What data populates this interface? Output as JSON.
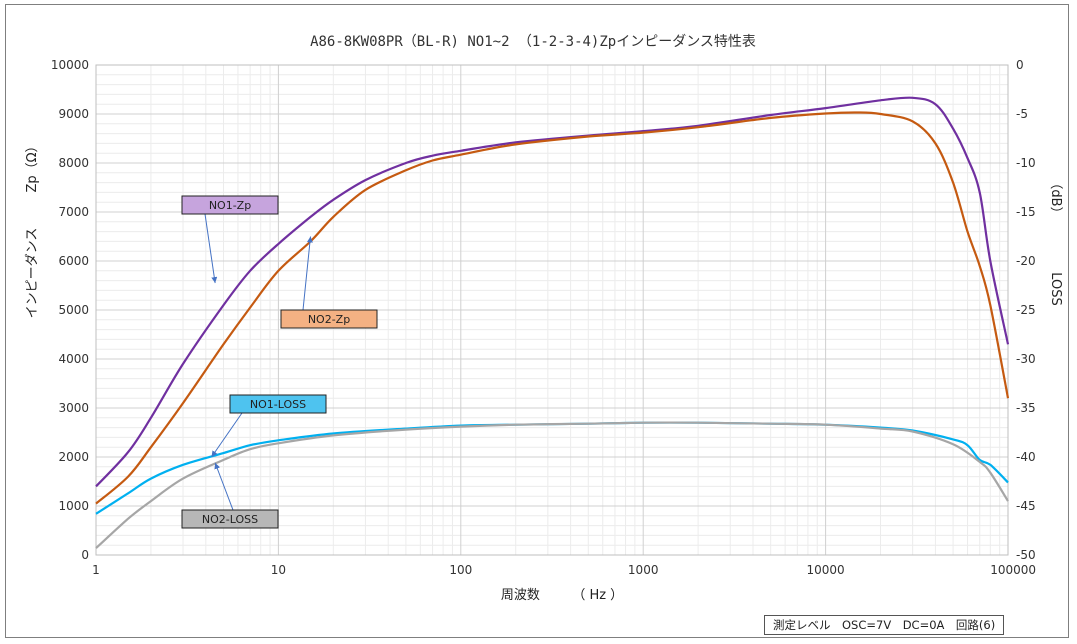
{
  "chart_data": {
    "type": "line",
    "title": "A86-8KW08PR（BL-R) NO1~2 （1-2-3-4)Zpインピーダンス特性表",
    "xlabel": "周波数　　　（ Hz ）",
    "ylabel_left_top": "Zp（Ω）",
    "ylabel_left_bottom": "インピーダンス",
    "ylabel_right_top": "（dB）",
    "ylabel_right_bottom": "LOSS",
    "x_scale": "log",
    "xlim": [
      1,
      100000
    ],
    "x_ticks": [
      "1",
      "10",
      "100",
      "1000",
      "10000",
      "100000"
    ],
    "ylim_left": [
      0,
      10000
    ],
    "y_ticks_left": [
      "0",
      "1000",
      "2000",
      "3000",
      "4000",
      "5000",
      "6000",
      "7000",
      "8000",
      "9000",
      "10000"
    ],
    "ylim_right": [
      -50,
      0
    ],
    "y_ticks_right": [
      "-50",
      "-45",
      "-40",
      "-35",
      "-30",
      "-25",
      "-20",
      "-15",
      "-10",
      "-5",
      "0"
    ],
    "grid": true,
    "note": "測定レベル　OSC=7V　DC=0A　回路(6)",
    "series": [
      {
        "name": "NO1-Zp",
        "axis": "left",
        "color": "#7030a0",
        "label_bg": "#c6a4dd",
        "x": [
          1,
          1.5,
          2,
          3,
          5,
          7,
          10,
          15,
          20,
          30,
          50,
          70,
          100,
          200,
          500,
          1000,
          2000,
          5000,
          10000,
          20000,
          30000,
          40000,
          50000,
          60000,
          70000,
          80000,
          100000
        ],
        "y": [
          1400,
          2100,
          2800,
          3900,
          5100,
          5800,
          6350,
          6900,
          7250,
          7650,
          8000,
          8150,
          8250,
          8420,
          8560,
          8650,
          8760,
          8980,
          9120,
          9280,
          9330,
          9200,
          8700,
          8100,
          7400,
          6000,
          4300
        ]
      },
      {
        "name": "NO2-Zp",
        "axis": "left",
        "color": "#c55a11",
        "label_bg": "#f4b183",
        "x": [
          1,
          1.5,
          2,
          3,
          5,
          7,
          10,
          15,
          20,
          30,
          50,
          70,
          100,
          200,
          500,
          1000,
          2000,
          5000,
          10000,
          15000,
          20000,
          30000,
          40000,
          50000,
          60000,
          70000,
          80000,
          100000
        ],
        "y": [
          1050,
          1600,
          2200,
          3100,
          4300,
          5050,
          5800,
          6400,
          6900,
          7450,
          7850,
          8050,
          8170,
          8380,
          8540,
          8620,
          8730,
          8920,
          9010,
          9030,
          9000,
          8850,
          8400,
          7600,
          6600,
          5900,
          5100,
          3200
        ]
      },
      {
        "name": "NO1-LOSS",
        "axis": "right",
        "color": "#00b0f0",
        "label_bg": "#4ec3ef",
        "x": [
          1,
          1.5,
          2,
          3,
          5,
          7,
          10,
          20,
          50,
          100,
          200,
          500,
          1000,
          2000,
          5000,
          10000,
          20000,
          30000,
          50000,
          60000,
          70000,
          80000,
          100000
        ],
        "y": [
          -45.8,
          -43.7,
          -42.2,
          -40.8,
          -39.6,
          -38.8,
          -38.3,
          -37.6,
          -37.1,
          -36.8,
          -36.7,
          -36.6,
          -36.5,
          -36.5,
          -36.6,
          -36.7,
          -37.0,
          -37.3,
          -38.2,
          -38.8,
          -40.3,
          -40.8,
          -42.6
        ]
      },
      {
        "name": "NO2-LOSS",
        "axis": "right",
        "color": "#a6a6a6",
        "label_bg": "#b7b7b7",
        "x": [
          1,
          1.5,
          2,
          3,
          5,
          7,
          10,
          20,
          50,
          100,
          200,
          500,
          1000,
          2000,
          5000,
          10000,
          20000,
          30000,
          50000,
          70000,
          80000,
          100000
        ],
        "y": [
          -49.3,
          -46.3,
          -44.5,
          -42.2,
          -40.3,
          -39.2,
          -38.6,
          -37.8,
          -37.2,
          -36.9,
          -36.7,
          -36.6,
          -36.5,
          -36.5,
          -36.6,
          -36.7,
          -37.1,
          -37.4,
          -38.7,
          -40.5,
          -41.6,
          -44.5
        ]
      }
    ],
    "annotations": [
      {
        "text": "NO1-Zp",
        "series": "NO1-Zp",
        "arrow_to": [
          4.5,
          5550
        ]
      },
      {
        "text": "NO2-Zp",
        "series": "NO2-Zp",
        "arrow_to": [
          15,
          6500
        ]
      },
      {
        "text": "NO1-LOSS",
        "series": "NO1-LOSS",
        "arrow_to": [
          4.3,
          -40.0
        ]
      },
      {
        "text": "NO2-LOSS",
        "series": "NO2-LOSS",
        "arrow_to": [
          4.5,
          -40.6
        ]
      }
    ]
  }
}
